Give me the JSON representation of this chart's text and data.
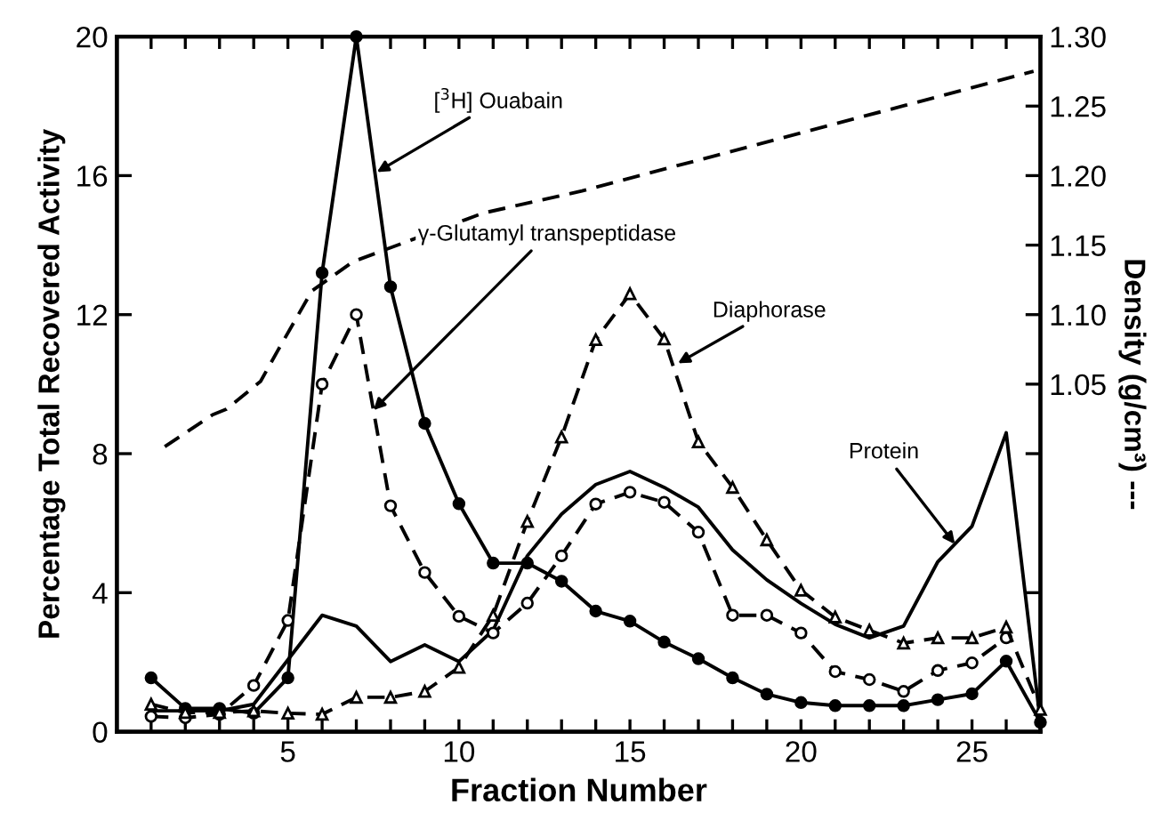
{
  "chart_data": {
    "type": "line",
    "xlabel": "Fraction Number",
    "ylabel": "Percentage Total Recovered Activity",
    "y2label": "Density (g/cm³) ---",
    "x": [
      1,
      2,
      3,
      4,
      5,
      6,
      7,
      8,
      9,
      10,
      11,
      12,
      13,
      14,
      15,
      16,
      17,
      18,
      19,
      20,
      21,
      22,
      23,
      24,
      25,
      26,
      27
    ],
    "series": [
      {
        "color": "#000000",
        "marker": "circle",
        "line_style": "solid",
        "values": [
          1.55,
          0.67,
          0.67,
          0.53,
          1.55,
          13.2,
          20,
          12.8,
          8.87,
          6.56,
          4.85,
          4.85,
          4.33,
          3.47,
          3.18,
          2.58,
          2.1,
          1.55,
          1.08,
          0.84,
          0.75,
          0.75,
          0.75,
          0.92,
          1.09,
          2.03,
          0.27
        ]
      },
      {
        "color": "#000000",
        "marker": "circle",
        "line_style": "dashed",
        "values": [
          0.44,
          0.4,
          0.5,
          1.33,
          3.2,
          10.0,
          12.0,
          6.5,
          4.58,
          3.32,
          2.84,
          3.7,
          5.06,
          6.55,
          6.89,
          6.6,
          5.74,
          3.35,
          3.35,
          2.84,
          1.73,
          1.5,
          1.16,
          1.76,
          1.98,
          2.7,
          null
        ]
      },
      {
        "color": "#000000",
        "marker": "triangle",
        "line_style": "dashed",
        "values": [
          0.79,
          0.55,
          0.55,
          0.6,
          0.53,
          0.5,
          0.99,
          0.99,
          1.16,
          1.85,
          3.35,
          6.05,
          8.48,
          11.28,
          12.6,
          11.3,
          8.34,
          7.03,
          5.52,
          4.07,
          3.3,
          2.92,
          2.55,
          2.7,
          2.7,
          3.01,
          0.64
        ]
      },
      {
        "color": "#000000",
        "marker": "none",
        "line_style": "solid",
        "values": [
          0.6,
          0.6,
          0.6,
          0.79,
          2.07,
          3.35,
          3.04,
          2.02,
          2.5,
          2.02,
          2.92,
          5.06,
          6.26,
          7.11,
          7.49,
          7.03,
          6.46,
          5.23,
          4.37,
          3.69,
          3.09,
          2.7,
          3.04,
          4.89,
          5.91,
          8.6,
          0.27
        ]
      },
      {
        "color": "#000000",
        "marker": "none",
        "line_style": "dashed",
        "axis": "y2",
        "x": [
          1.4,
          2.8,
          3.2,
          4.2,
          4.7,
          5.7,
          6.9,
          10.7,
          13.6,
          26.8
        ],
        "values": [
          1.005,
          1.028,
          1.032,
          1.052,
          1.074,
          1.117,
          1.138,
          1.173,
          1.189,
          1.275
        ]
      }
    ],
    "xlim": [
      0,
      27
    ],
    "xticks": [
      {
        "value": 1,
        "label": null
      },
      {
        "value": 2,
        "label": null
      },
      {
        "value": 3,
        "label": null
      },
      {
        "value": 4,
        "label": null
      },
      5,
      {
        "value": 6,
        "label": null
      },
      {
        "value": 7,
        "label": null
      },
      {
        "value": 8,
        "label": null
      },
      {
        "value": 9,
        "label": null
      },
      10,
      {
        "value": 11,
        "label": null
      },
      {
        "value": 12,
        "label": null
      },
      {
        "value": 13,
        "label": null
      },
      {
        "value": 14,
        "label": null
      },
      15,
      {
        "value": 16,
        "label": null
      },
      {
        "value": 17,
        "label": null
      },
      {
        "value": 18,
        "label": null
      },
      {
        "value": 19,
        "label": null
      },
      20,
      {
        "value": 21,
        "label": null
      },
      {
        "value": 22,
        "label": null
      },
      {
        "value": 23,
        "label": null
      },
      {
        "value": 24,
        "label": null
      },
      25,
      {
        "value": 26,
        "label": null
      },
      {
        "value": 27,
        "label": null
      }
    ],
    "ylim": [
      0,
      20
    ],
    "yticks": [
      0,
      4,
      8,
      12,
      16,
      20
    ],
    "y2lim": [
      0.8,
      1.3
    ],
    "y2ticks": [
      {
        "value": 0.9,
        "label": null
      },
      {
        "value": 1.0,
        "label": null
      },
      {
        "value": 1.05,
        "label": "1.05"
      },
      {
        "value": 1.1,
        "label": "1.10"
      },
      {
        "value": 1.15,
        "label": "1.15"
      },
      {
        "value": 1.2,
        "label": "1.20"
      },
      {
        "value": 1.25,
        "label": "1.25"
      },
      {
        "value": 1.3,
        "label": "1.30"
      }
    ],
    "annotations": [
      {
        "text": "[$^{3}$H] Ouabain",
        "x": 7.6,
        "y": 16.1
      },
      {
        "text": "γ-Glutamyl transpeptidase",
        "x": 7.5,
        "y": 9.25
      },
      {
        "text": "Diaphorase",
        "x": 16.4,
        "y": 10.6
      },
      {
        "text": "Protein",
        "x": 24.5,
        "y": 5.4
      }
    ],
    "grid": false,
    "legend": false
  }
}
